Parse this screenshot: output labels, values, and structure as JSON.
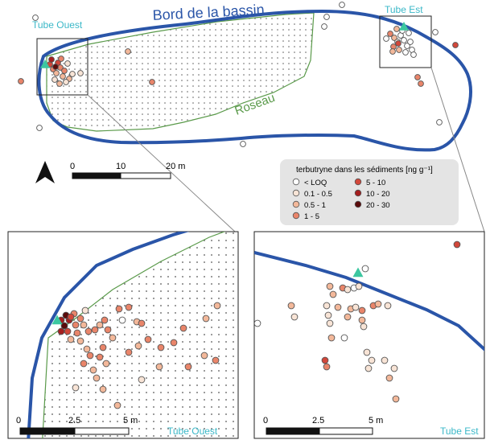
{
  "labels": {
    "basin_edge": "Bord de la bassin",
    "reed": "Roseau",
    "tube_west": "Tube Ouest",
    "tube_east": "Tube Est"
  },
  "scalebars": {
    "main": {
      "ticks": [
        "0",
        "10",
        "20 m"
      ]
    },
    "west_inset": {
      "ticks": [
        "0",
        "2.5",
        "5 m"
      ]
    },
    "east_inset": {
      "ticks": [
        "0",
        "2.5",
        "5 m"
      ]
    }
  },
  "legend": {
    "title": "terbutryne dans les sédiments [ng g⁻¹]",
    "classes": [
      {
        "label": "< LOQ",
        "color": "#ffffff"
      },
      {
        "label": "0.1 - 0.5",
        "color": "#f8e4d6"
      },
      {
        "label": "0.5 - 1",
        "color": "#f3b89a"
      },
      {
        "label": "1 - 5",
        "color": "#e9856a"
      },
      {
        "label": "5 - 10",
        "color": "#d2473a"
      },
      {
        "label": "10 - 20",
        "color": "#a51e1e"
      },
      {
        "label": "20 - 30",
        "color": "#5a0b0b"
      }
    ]
  },
  "colors": {
    "basin_outline": "#2a55a8",
    "reed_outline": "#5a9a4a",
    "tube_marker": "#3cc7a0",
    "tube_label": "#3bb8c8"
  },
  "icons": {
    "north_arrow": "north-arrow-icon",
    "tube_marker": "triangle-icon"
  }
}
